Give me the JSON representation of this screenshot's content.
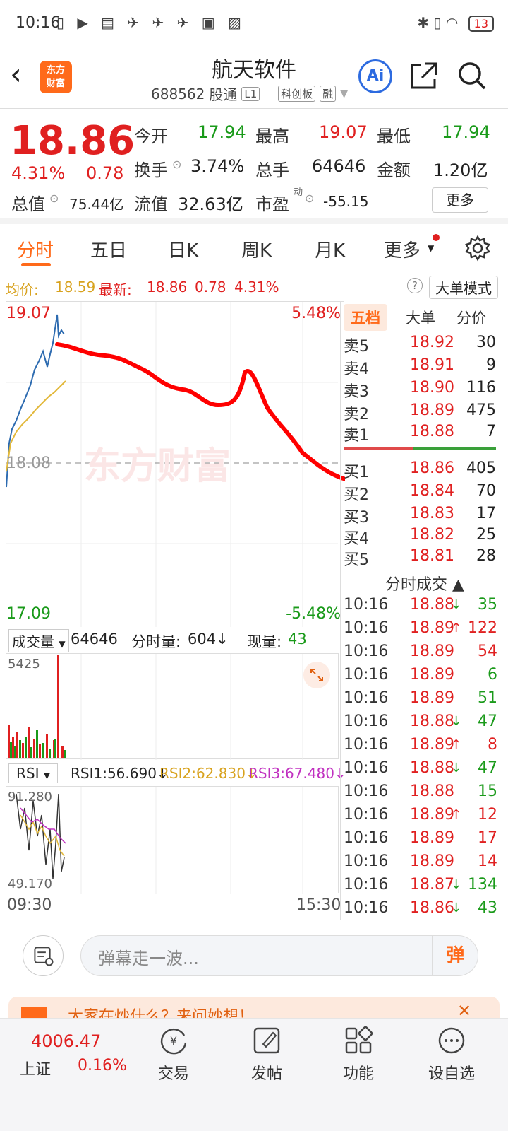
{
  "status": {
    "time": "10:16",
    "battery": "13"
  },
  "header": {
    "back": "‹",
    "logo_line1": "东方",
    "logo_line2": "财富",
    "name": "航天软件",
    "code": "688562",
    "tag1": "股通",
    "tag2": "L1",
    "tag3": "科创板",
    "tag4": "融",
    "ai": "Ai"
  },
  "quote": {
    "price": "18.86",
    "change_pct": "4.31%",
    "change_val": "0.78",
    "open_label": "今开",
    "open": "17.94",
    "high_label": "最高",
    "high": "19.07",
    "low_label": "最低",
    "low": "17.94",
    "turnover_label": "换手",
    "turnover": "3.74%",
    "volume_label": "总手",
    "volume": "64646",
    "amount_label": "金额",
    "amount": "1.20亿",
    "mktcap_label": "总值",
    "mktcap": "75.44亿",
    "float_label": "流值",
    "float": "32.63亿",
    "pe_label": "市盈",
    "pe_sup": "动",
    "pe": "-55.15",
    "more": "更多"
  },
  "tabs": [
    "分时",
    "五日",
    "日K",
    "周K",
    "月K",
    "更多"
  ],
  "infobar": {
    "avg_label": "均价:",
    "avg": "18.59",
    "latest_label": "最新:",
    "latest": "18.86",
    "latest_chg": "0.78",
    "latest_pct": "4.31%",
    "big_order": "大单模式"
  },
  "chart": {
    "y_top": "19.07",
    "y_mid": "18.08",
    "y_bottom": "17.09",
    "pct_top": "5.48%",
    "pct_bottom": "-5.48%",
    "x_start": "09:30",
    "x_end": "15:30",
    "watermark": "东方财富"
  },
  "volume": {
    "label": "成交量",
    "total": "64646",
    "min_label": "分时量:",
    "min_vol": "604↓",
    "now_label": "现量:",
    "now": "43",
    "max": "5425"
  },
  "rsi": {
    "label": "RSI",
    "rsi1": "RSI1:56.690↓",
    "rsi2": "RSI2:62.830↓",
    "rsi3": "RSI3:67.480↓",
    "top": "91.280",
    "bottom": "49.170"
  },
  "book": {
    "tabs": [
      "五档",
      "大单",
      "分价"
    ],
    "asks": [
      {
        "label": "卖5",
        "price": "18.92",
        "vol": "30"
      },
      {
        "label": "卖4",
        "price": "18.91",
        "vol": "9"
      },
      {
        "label": "卖3",
        "price": "18.90",
        "vol": "116"
      },
      {
        "label": "卖2",
        "price": "18.89",
        "vol": "475"
      },
      {
        "label": "卖1",
        "price": "18.88",
        "vol": "7"
      }
    ],
    "bids": [
      {
        "label": "买1",
        "price": "18.86",
        "vol": "405"
      },
      {
        "label": "买2",
        "price": "18.84",
        "vol": "70"
      },
      {
        "label": "买3",
        "price": "18.83",
        "vol": "17"
      },
      {
        "label": "买4",
        "price": "18.82",
        "vol": "25"
      },
      {
        "label": "买5",
        "price": "18.81",
        "vol": "28"
      }
    ]
  },
  "trades": {
    "title": "分时成交 ▲",
    "rows": [
      {
        "t": "10:16",
        "p": "18.88",
        "a": "↓",
        "v": "35",
        "c": "green"
      },
      {
        "t": "10:16",
        "p": "18.89",
        "a": "↑",
        "v": "122",
        "c": "red"
      },
      {
        "t": "10:16",
        "p": "18.89",
        "a": "",
        "v": "54",
        "c": "red"
      },
      {
        "t": "10:16",
        "p": "18.89",
        "a": "",
        "v": "6",
        "c": "green"
      },
      {
        "t": "10:16",
        "p": "18.89",
        "a": "",
        "v": "51",
        "c": "green"
      },
      {
        "t": "10:16",
        "p": "18.88",
        "a": "↓",
        "v": "47",
        "c": "green"
      },
      {
        "t": "10:16",
        "p": "18.89",
        "a": "↑",
        "v": "8",
        "c": "red"
      },
      {
        "t": "10:16",
        "p": "18.88",
        "a": "↓",
        "v": "47",
        "c": "green"
      },
      {
        "t": "10:16",
        "p": "18.88",
        "a": "",
        "v": "15",
        "c": "green"
      },
      {
        "t": "10:16",
        "p": "18.89",
        "a": "↑",
        "v": "12",
        "c": "red"
      },
      {
        "t": "10:16",
        "p": "18.89",
        "a": "",
        "v": "17",
        "c": "red"
      },
      {
        "t": "10:16",
        "p": "18.89",
        "a": "",
        "v": "14",
        "c": "red"
      },
      {
        "t": "10:16",
        "p": "18.87",
        "a": "↓",
        "v": "134",
        "c": "green"
      },
      {
        "t": "10:16",
        "p": "18.86",
        "a": "↓",
        "v": "43",
        "c": "green"
      }
    ]
  },
  "comment": {
    "placeholder": "弹幕走一波...",
    "dan": "弹"
  },
  "banner": {
    "text": "大家在炒什么？来问妙想！"
  },
  "nav": {
    "index_val": "4006.47",
    "index_name": "上证",
    "index_chg": "0.16%",
    "items": [
      "交易",
      "发帖",
      "功能",
      "设自选"
    ]
  },
  "colors": {
    "up": "#e02020",
    "down": "#1a9a1a",
    "accent": "#ff6a1a",
    "avg": "#d8a21e"
  }
}
